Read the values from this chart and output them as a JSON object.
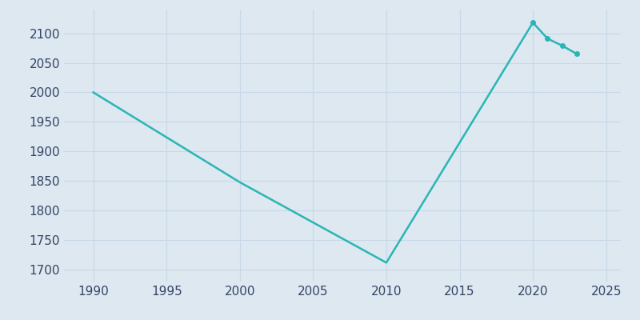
{
  "years": [
    1990,
    2000,
    2010,
    2020,
    2021,
    2022,
    2023
  ],
  "population": [
    2000,
    1848,
    1712,
    2118,
    2091,
    2079,
    2065
  ],
  "line_color": "#2ab5b5",
  "marker_years": [
    2020,
    2021,
    2022,
    2023
  ],
  "marker_color": "#2ab5b5",
  "background_color": "#dde8f0",
  "plot_bg_color": "#dde8f0",
  "grid_color": "#c8d8e8",
  "xlim": [
    1988,
    2026
  ],
  "ylim": [
    1680,
    2140
  ],
  "xticks": [
    1990,
    1995,
    2000,
    2005,
    2010,
    2015,
    2020,
    2025
  ],
  "yticks": [
    1700,
    1750,
    1800,
    1850,
    1900,
    1950,
    2000,
    2050,
    2100
  ],
  "tick_color": "#334466",
  "tick_fontsize": 11,
  "line_width": 1.8,
  "marker_size": 4
}
